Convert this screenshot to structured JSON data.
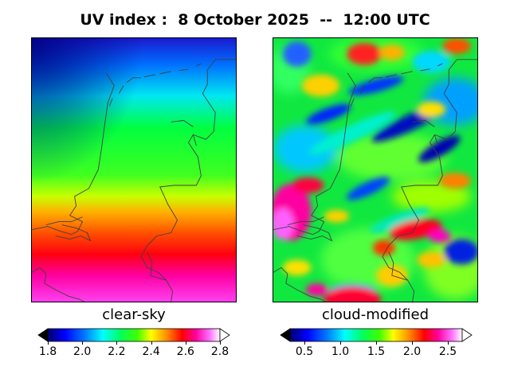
{
  "title": "UV index :  8 October 2025  --  12:00 UTC",
  "panels": [
    {
      "label": "clear-sky",
      "colorbar": {
        "ticks": [
          "1.8",
          "2.0",
          "2.2",
          "2.4",
          "2.6",
          "2.8"
        ],
        "range": [
          1.8,
          2.8
        ],
        "extend": "both"
      }
    },
    {
      "label": "cloud-modified",
      "colorbar": {
        "ticks": [
          "0.5",
          "1.0",
          "1.5",
          "2.0",
          "2.5"
        ],
        "range": [
          0.3,
          2.7
        ],
        "extend": "both"
      }
    }
  ],
  "colormap": "gist_ncar",
  "map_region": "Netherlands",
  "colors": {
    "coastline": "#404040",
    "outline": "#000000"
  }
}
